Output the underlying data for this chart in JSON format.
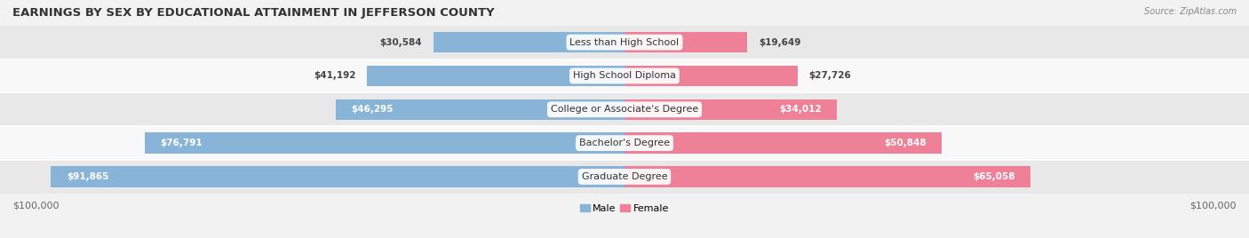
{
  "title": "EARNINGS BY SEX BY EDUCATIONAL ATTAINMENT IN JEFFERSON COUNTY",
  "source": "Source: ZipAtlas.com",
  "categories": [
    "Less than High School",
    "High School Diploma",
    "College or Associate's Degree",
    "Bachelor's Degree",
    "Graduate Degree"
  ],
  "male_values": [
    30584,
    41192,
    46295,
    76791,
    91865
  ],
  "female_values": [
    19649,
    27726,
    34012,
    50848,
    65058
  ],
  "male_color": "#88b4d8",
  "female_color": "#ee8098",
  "bar_height": 0.62,
  "xlim": 100000,
  "background_color": "#f2f2f2",
  "row_colors": [
    "#e8e8e8",
    "#f8f8f8"
  ],
  "title_fontsize": 9.5,
  "label_fontsize": 8,
  "value_fontsize": 7.5,
  "axis_label_fontsize": 8,
  "legend_fontsize": 8
}
